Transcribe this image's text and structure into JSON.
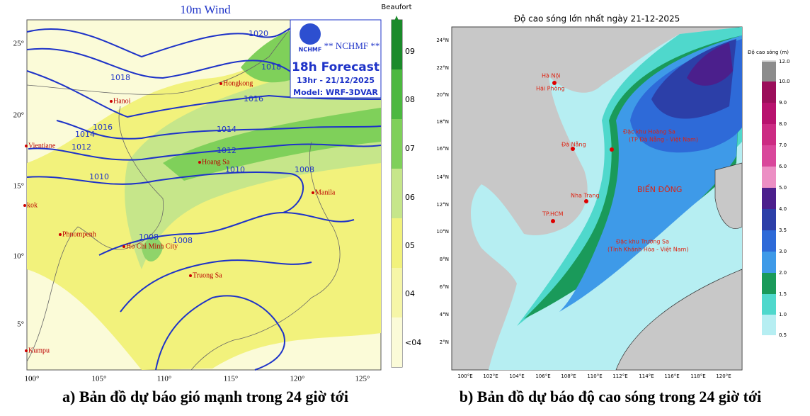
{
  "left_map": {
    "title": "10m Wind",
    "colorbar_title": "Beaufort",
    "colorbar_labels": [
      "09",
      "08",
      "07",
      "06",
      "05",
      "04",
      "<04"
    ],
    "logo_text": "NCHMF",
    "header": "** NCHMF **",
    "forecast": "18h Forecast",
    "time": "13hr - 21/12/2025",
    "model": "Model: WRF-3DVAR",
    "lat_labels": [
      "25°",
      "20°",
      "15°",
      "10°",
      "5°"
    ],
    "lon_labels": [
      "100°",
      "105°",
      "110°",
      "115°",
      "120°",
      "125°"
    ],
    "places": [
      "Hongkong",
      "Hanoi",
      "Vientiane",
      "Hoang Sa",
      "Manila",
      "kok",
      "Phnompenh",
      "Ho Chi Minh City",
      "Truong Sa",
      "Kumpu"
    ],
    "isobar_labels": [
      "1020",
      "1018",
      "1018",
      "1016",
      "1016",
      "1014",
      "1014",
      "1012",
      "1012",
      "1010",
      "1010",
      "1008",
      "1008",
      "1008"
    ]
  },
  "right_map": {
    "title": "Độ cao sóng lớn nhất ngày 21-12-2025",
    "colorbar_title": "Độ cao sóng (m)",
    "colorbar_labels": [
      "12.0",
      "10.0",
      "9.0",
      "8.0",
      "7.0",
      "6.0",
      "5.0",
      "4.0",
      "3.5",
      "3.0",
      "2.0",
      "1.5",
      "1.0",
      "0.5"
    ],
    "lat_labels": [
      "24°N",
      "22°N",
      "20°N",
      "18°N",
      "16°N",
      "14°N",
      "12°N",
      "10°N",
      "8°N",
      "6°N",
      "4°N",
      "2°N"
    ],
    "lon_labels": [
      "100°E",
      "102°E",
      "104°E",
      "106°E",
      "108°E",
      "110°E",
      "112°E",
      "114°E",
      "116°E",
      "118°E",
      "120°E"
    ],
    "places": [
      "Hà Nội",
      "Hải Phòng",
      "Đặc khu Hoàng Sa",
      "(TP Đà Nẵng - Việt Nam)",
      "Đà Nẵng",
      "BIỂN ĐÔNG",
      "Nha Trang",
      "TP.HCM",
      "Đặc khu Trường Sa",
      "(Tỉnh Khánh Hòa - Việt Nam)"
    ]
  },
  "captions": [
    "a) Bản đồ dự báo gió mạnh trong 24 giờ tới",
    "b) Bản đồ dự báo độ cao sóng trong 24 giờ tới"
  ]
}
